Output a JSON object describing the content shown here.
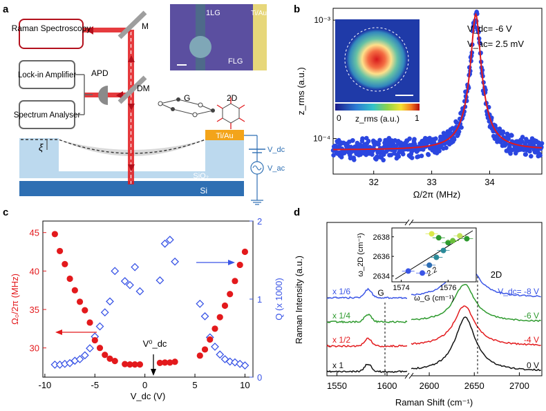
{
  "panel_labels": [
    "a",
    "b",
    "c",
    "d"
  ],
  "panel_a": {
    "raman_box": "Raman Spectroscopy",
    "lockin_box": "Lock-in Amplifier",
    "spectrum_box": "Spectrum Analyser",
    "apd": "APD",
    "mirror": "M",
    "dichroic": "DM",
    "photo_1lg": "1LG",
    "photo_tiau": "Ti/Au",
    "photo_flg": "FLG",
    "mode_g": "G",
    "mode_2d": "2D",
    "contact": "Ti/Au",
    "xi": "ξ",
    "sio2": "SiO₂",
    "si": "Si",
    "vdc": "V_dc",
    "vac": "V_ac"
  },
  "chart_data": [
    {
      "panel": "b",
      "type": "scatter",
      "xlabel": "Ω/2π (MHz)",
      "ylabel": "z_rms (a.u.)",
      "xlim": [
        31.3,
        34.9
      ],
      "ylim_log10": [
        -4.3,
        -2.9
      ],
      "yscale": "log",
      "xticks": [
        32,
        33,
        34
      ],
      "yticks": [
        "10⁻³",
        "10⁻⁴"
      ],
      "annotation_vdc": "V_dc= -6 V",
      "annotation_vac": "V_ac= 2.5 mV",
      "lorentzian": {
        "center_mhz": 33.76,
        "fwhm_mhz": 0.13,
        "peak": 0.00112,
        "background": 8e-05
      },
      "inset_colorbar": {
        "min": "0",
        "label": "z_rms (a.u.)",
        "max": "1"
      }
    },
    {
      "panel": "c",
      "type": "scatter",
      "xlabel": "V_dc (V)",
      "ylabel_left": "Ω₀/2π (MHz)",
      "ylabel_right": "Q (x 1000)",
      "xlim": [
        -10.2,
        10.8
      ],
      "ylim_left": [
        26.2,
        46.5
      ],
      "ylim_right": [
        0,
        2
      ],
      "xticks": [
        -10,
        -5,
        0,
        5,
        10
      ],
      "yticks_left": [
        30,
        35,
        40,
        45
      ],
      "yticks_right": [
        0,
        1,
        2
      ],
      "annotation": "V⁰_dc",
      "series": [
        {
          "name": "Ω₀/2π (MHz)",
          "axis": "left",
          "marker": "filled-circle",
          "color": "#e3191c",
          "x": [
            -9,
            -8.5,
            -8,
            -7.5,
            -7,
            -6.5,
            -6,
            -5.5,
            -5,
            -4.5,
            -4,
            -3.5,
            -3,
            -2,
            -1.5,
            -1,
            -0.5,
            1.5,
            2,
            2.5,
            3,
            5.5,
            6,
            6.5,
            7,
            7.5,
            8,
            8.5,
            9,
            9.5,
            10
          ],
          "y": [
            44.8,
            42.6,
            40.9,
            39.0,
            37.5,
            36.0,
            34.9,
            33.3,
            31.0,
            30.0,
            29.1,
            28.6,
            28.3,
            27.9,
            27.85,
            27.85,
            27.85,
            28.05,
            28.1,
            28.1,
            28.2,
            29.0,
            29.8,
            31.1,
            32.5,
            34.0,
            35.5,
            37.0,
            38.7,
            40.8,
            42.5
          ]
        },
        {
          "name": "Q (x 1000)",
          "axis": "right",
          "marker": "open-diamond",
          "color": "#3a55e6",
          "x": [
            -9,
            -8.5,
            -8,
            -7.5,
            -7,
            -6.5,
            -6,
            -5.5,
            -5,
            -4.5,
            -4,
            -3.5,
            -3,
            -2,
            -1.5,
            -1,
            -0.5,
            1.5,
            2,
            2.5,
            3,
            5.5,
            6,
            6.5,
            7,
            7.5,
            8,
            8.5,
            9,
            9.5,
            10
          ],
          "y": [
            0.16,
            0.16,
            0.17,
            0.18,
            0.21,
            0.23,
            0.28,
            0.37,
            0.52,
            0.65,
            0.83,
            0.97,
            1.36,
            1.23,
            1.18,
            1.41,
            1.1,
            1.24,
            1.71,
            1.76,
            1.48,
            0.94,
            0.78,
            0.51,
            0.39,
            0.29,
            0.23,
            0.2,
            0.19,
            0.17,
            0.15
          ]
        }
      ]
    },
    {
      "panel": "d",
      "type": "line",
      "xlabel": "Raman Shift (cm⁻¹)",
      "ylabel": "Raman Intensity (a.u.)",
      "xticks": [
        "1550",
        "1600",
        "2600",
        "2650",
        "2700"
      ],
      "xlim_left": [
        1540,
        1620
      ],
      "xlim_right": [
        2580,
        2725
      ],
      "series": [
        {
          "voltage": "0 V",
          "scale": "x 1",
          "color": "#111111",
          "g_height": 0.5,
          "twod_height": 1.0,
          "twod_center": 2640
        },
        {
          "voltage": "-4 V",
          "scale": "x 1/2",
          "color": "#e3191c",
          "g_height": 0.5,
          "twod_height": 0.75,
          "twod_center": 2639
        },
        {
          "voltage": "-6 V",
          "scale": "x 1/4",
          "color": "#2e9a2e",
          "g_height": 0.5,
          "twod_height": 0.7,
          "twod_center": 2639
        },
        {
          "voltage": "V_dc= -8 V",
          "scale": "x 1/6",
          "color": "#3a55e6",
          "g_height": 0.55,
          "twod_height": 0.9,
          "twod_center": 2638
        }
      ],
      "labels": {
        "g_peak": "G",
        "twod_peak": "2D"
      },
      "inset": {
        "xlabel": "ω_G (cm⁻¹)",
        "ylabel": "ω_2D (cm⁻¹)",
        "xticks": [
          "1574",
          "1576"
        ],
        "yticks": [
          "2634",
          "2636",
          "2638"
        ],
        "slope_label": "2.2",
        "points_wg": [
          1574.3,
          1574.9,
          1575.2,
          1575.5,
          1575.8,
          1576.0,
          1575.6,
          1576.2,
          1576.5,
          1575.3,
          1576.8
        ],
        "points_w2d": [
          2634.5,
          2634.3,
          2635.1,
          2635.9,
          2636.6,
          2637.4,
          2637.9,
          2637.6,
          2638.1,
          2638.3,
          2637.8
        ]
      }
    }
  ]
}
